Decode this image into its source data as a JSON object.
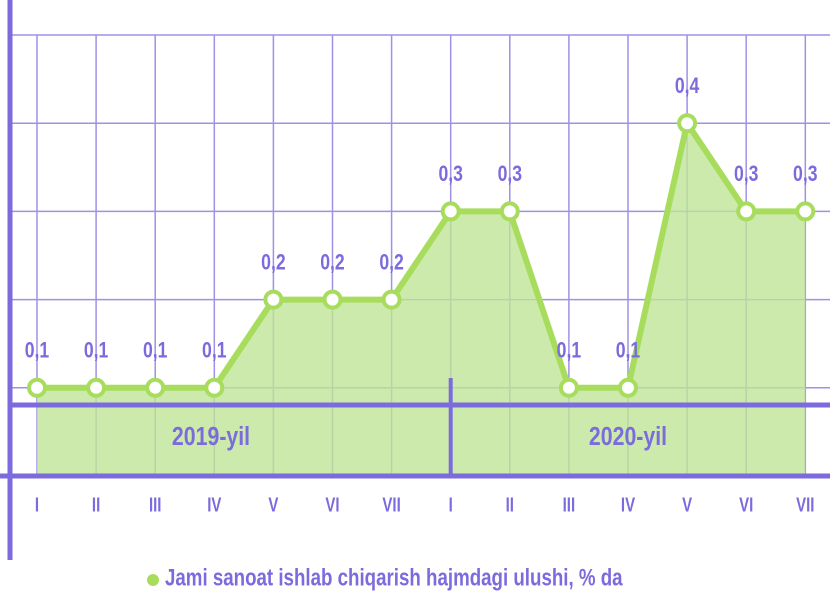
{
  "chart_data": {
    "type": "area",
    "categories": [
      "I",
      "II",
      "III",
      "IV",
      "V",
      "VI",
      "VII",
      "I",
      "II",
      "III",
      "IV",
      "V",
      "VI",
      "VII"
    ],
    "x_groups": [
      "2019-yil",
      "2020-yil"
    ],
    "series": [
      {
        "name": "Jami sanoat ishlab chiqarish hajmdagi ulushi, % da",
        "color": "#a8dc5c",
        "values": [
          0.1,
          0.1,
          0.1,
          0.1,
          0.2,
          0.2,
          0.2,
          0.3,
          0.3,
          0.1,
          0.1,
          0.4,
          0.3,
          0.3
        ],
        "value_labels": [
          "0,1",
          "0,1",
          "0,1",
          "0,1",
          "0,2",
          "0,2",
          "0,2",
          "0,3",
          "0,3",
          "0,1",
          "0,1",
          "0,4",
          "0,3",
          "0,3"
        ]
      }
    ],
    "ylim": [
      0,
      0.5
    ],
    "yticks": [
      0.1,
      0.2,
      0.3,
      0.4,
      0.5
    ],
    "grid": true,
    "legend": "bottom"
  }
}
